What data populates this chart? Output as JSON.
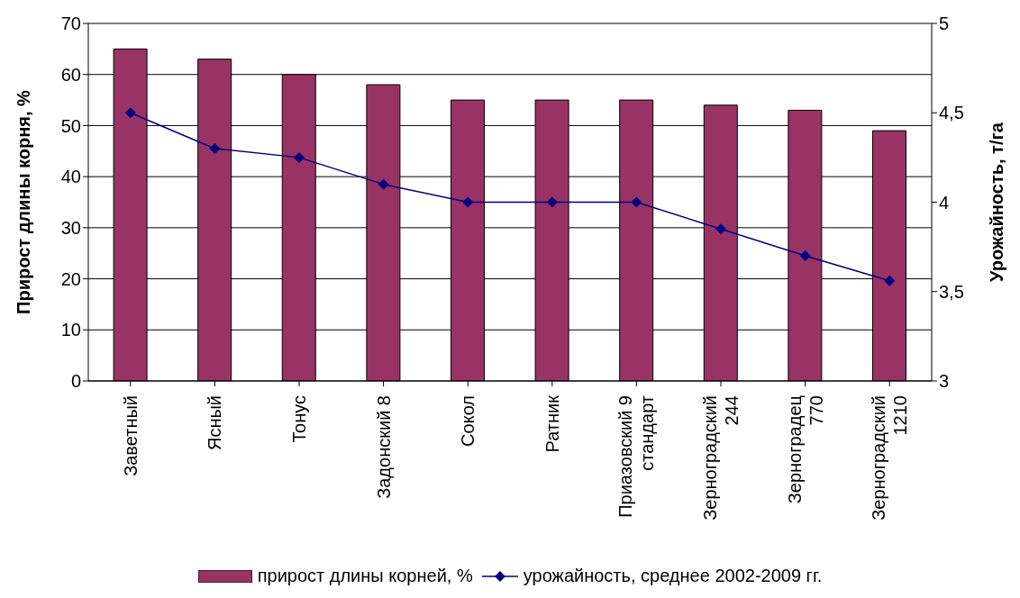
{
  "chart_data": {
    "type": "bar",
    "categories": [
      "Заветный",
      "Ясный",
      "Тонус",
      "Задонский 8",
      "Сокол",
      "Ратник",
      "Приазовский 9 стандарт",
      "Зерноградский 244",
      "Зерноградец 770",
      "Зерноградский 1210"
    ],
    "series": [
      {
        "name": "прирост длины корней, %",
        "color": "#993366",
        "values": [
          65,
          63,
          60,
          58,
          55,
          55,
          55,
          54,
          53,
          49
        ]
      },
      {
        "name": "урожайность, среднее 2002-2009 гг.",
        "type": "line",
        "axis": "y2",
        "color": "#000080",
        "marker": "diamond",
        "values": [
          4.5,
          4.3,
          4.25,
          4.1,
          4.0,
          4.0,
          4.0,
          3.85,
          3.7,
          3.56
        ]
      }
    ],
    "ylabel": "Прирост длины корня, %",
    "y2label": "Урожайность, т/га",
    "ylim": [
      0,
      70
    ],
    "yticks": [
      0,
      10,
      20,
      30,
      40,
      50,
      60,
      70
    ],
    "y2lim": [
      3,
      5
    ],
    "y2ticks": [
      3,
      {
        "value": 3.5,
        "label": "3,5"
      },
      4,
      {
        "value": 4.5,
        "label": "4,5"
      },
      5
    ],
    "grid": "y",
    "legend": "bottom"
  }
}
